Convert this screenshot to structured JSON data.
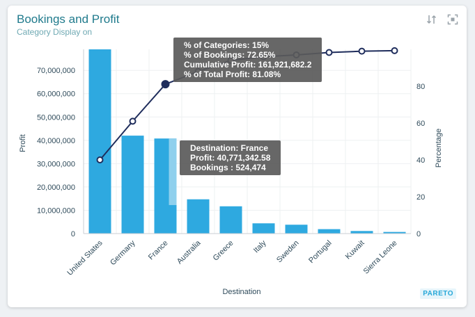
{
  "header": {
    "title": "Bookings and Profit",
    "subtitle": "Category Display on"
  },
  "toolbar": {
    "sort_icon": "sort-icon",
    "fullscreen_icon": "fullscreen-icon"
  },
  "badge": "PARETO",
  "tooltip_cumulative": {
    "line1": "% of Categories: 15%",
    "line2": "% of Bookings: 72.65%",
    "line3": "Cumulative Profit: 161,921,682.2",
    "line4": "% of Total Profit: 81.08%"
  },
  "tooltip_bar": {
    "line1": "Destination: France",
    "line2": "Profit: 40,771,342.58",
    "line3": "Bookings : 524,474"
  },
  "colors": {
    "bar": "#2ea9e0",
    "bar_highlight": "#a8d9f0",
    "line": "#1f2d5c",
    "axis_text": "#2e4a5a",
    "grid": "#eef0f2"
  },
  "chart_data": {
    "type": "bar",
    "categories": [
      "United States",
      "Germany",
      "France",
      "Australia",
      "Greece",
      "Italy",
      "Sweden",
      "Portugal",
      "Kuwait",
      "Sierra Leone"
    ],
    "series": [
      {
        "name": "Profit",
        "axis": "left",
        "values": [
          79000000,
          42000000,
          40771342.58,
          14700000,
          11700000,
          4400000,
          3800000,
          1900000,
          1100000,
          700000
        ]
      },
      {
        "name": "Percentage",
        "axis": "right",
        "type": "line",
        "values": [
          40,
          61,
          81.08,
          88,
          94,
          96,
          97,
          98.3,
          99,
          99.3
        ]
      }
    ],
    "highlight_index": 2,
    "xlabel": "Destination",
    "ylabel": "Profit",
    "y2label": "Percentage",
    "ylim": [
      0,
      79000000
    ],
    "yticks": [
      0,
      10000000,
      20000000,
      30000000,
      40000000,
      50000000,
      60000000,
      70000000
    ],
    "ytick_labels": [
      "0",
      "10,000,000",
      "20,000,000",
      "30,000,000",
      "40,000,000",
      "50,000,000",
      "60,000,000",
      "70,000,000"
    ],
    "y2lim": [
      0,
      100
    ],
    "y2ticks": [
      0,
      20,
      40,
      60,
      80
    ],
    "grid": true
  }
}
